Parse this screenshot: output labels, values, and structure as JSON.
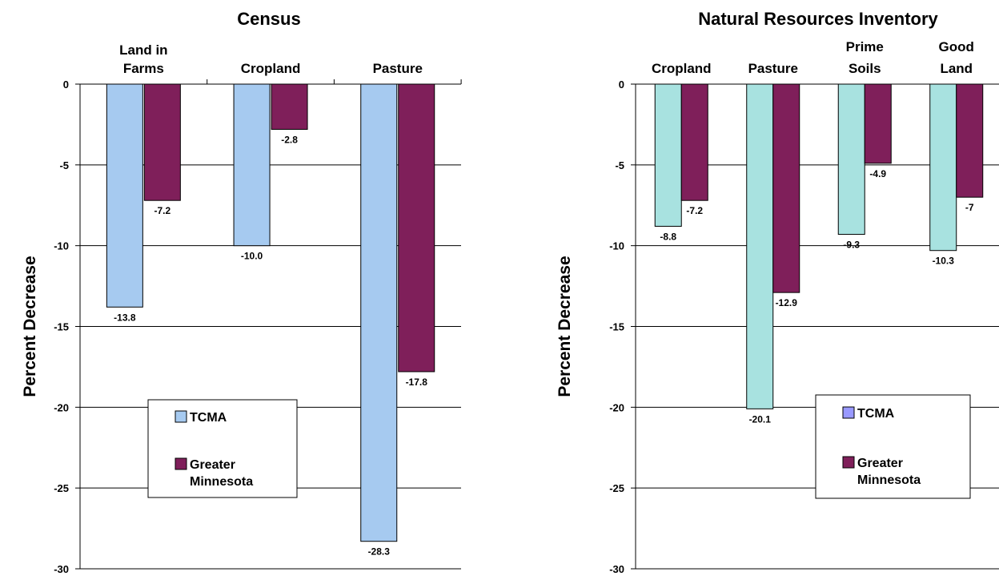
{
  "chart_data": [
    {
      "type": "bar",
      "title": "Census",
      "ylabel": "Percent Decrease",
      "ylim": [
        -30,
        0
      ],
      "yticks": [
        "0",
        "-5",
        "-10",
        "-15",
        "-20",
        "-25",
        "-30"
      ],
      "ytick_values": [
        0,
        -5,
        -10,
        -15,
        -20,
        -25,
        -30
      ],
      "categories": [
        [
          "Land in",
          "Farms"
        ],
        [
          "Cropland"
        ],
        [
          "Pasture"
        ]
      ],
      "series": [
        {
          "name": "TCMA",
          "color": "#a6caf0",
          "values": [
            -13.8,
            -10.0,
            -28.3
          ],
          "labels": [
            "-13.8",
            "-10.0",
            "-28.3"
          ]
        },
        {
          "name": "Greater Minnesota",
          "name_lines": [
            "Greater",
            "Minnesota"
          ],
          "color": "#7f1f5a",
          "values": [
            -7.2,
            -2.8,
            -17.8
          ],
          "labels": [
            "-7.2",
            "-2.8",
            "-17.8"
          ]
        }
      ],
      "grid": true,
      "legend": "lower-left"
    },
    {
      "type": "bar",
      "title": "Natural Resources Inventory",
      "ylabel": "Percent Decrease",
      "ylim": [
        -30,
        0
      ],
      "yticks": [
        "0",
        "-5",
        "-10",
        "-15",
        "-20",
        "-25",
        "-30"
      ],
      "ytick_values": [
        0,
        -5,
        -10,
        -15,
        -20,
        -25,
        -30
      ],
      "categories": [
        [
          "Cropland"
        ],
        [
          "Pasture"
        ],
        [
          "Prime",
          "Soils"
        ],
        [
          "Good",
          "Land"
        ]
      ],
      "series": [
        {
          "name": "TCMA",
          "color": "#a8e2e0",
          "legend_color": "#9999ff",
          "values": [
            -8.8,
            -20.1,
            -9.3,
            -10.3
          ],
          "labels": [
            "-8.8",
            "-20.1",
            "-9.3",
            "-10.3"
          ]
        },
        {
          "name": "Greater Minnesota",
          "name_lines": [
            "Greater",
            "Minnesota"
          ],
          "color": "#7f1f5a",
          "values": [
            -7.2,
            -12.9,
            -4.9,
            -7
          ],
          "labels": [
            "-7.2",
            "-12.9",
            "-4.9",
            "-7"
          ]
        }
      ],
      "grid": true,
      "legend": "lower-right"
    }
  ]
}
